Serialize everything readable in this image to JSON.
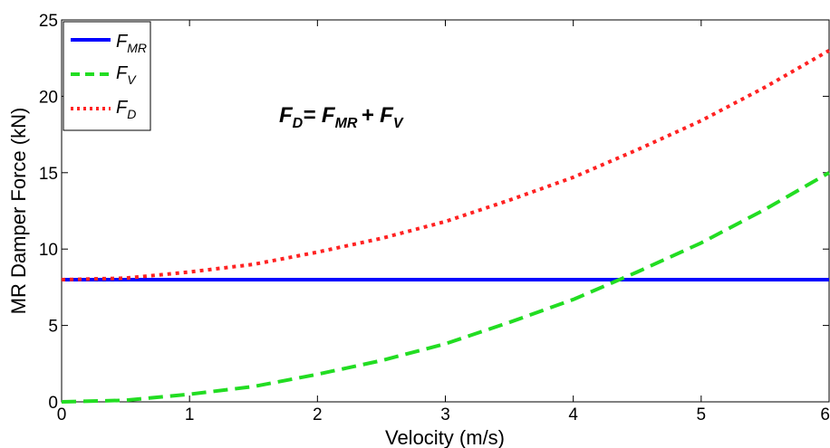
{
  "chart_data": {
    "type": "line",
    "xlabel": "Velocity (m/s)",
    "ylabel": "MR Damper Force (kN)",
    "xlim": [
      0,
      6
    ],
    "ylim": [
      0,
      25
    ],
    "x_ticks": [
      "0",
      "1",
      "2",
      "3",
      "4",
      "5",
      "6"
    ],
    "y_ticks": [
      "0",
      "5",
      "10",
      "15",
      "20",
      "25"
    ],
    "grid": false,
    "legend_position": "top-left",
    "annotation": {
      "base": [
        "F",
        "= F",
        "+ F"
      ],
      "subs": [
        "D",
        "MR",
        "V"
      ]
    },
    "x": [
      0,
      0.5,
      1,
      1.5,
      2,
      2.5,
      3,
      3.5,
      4,
      4.5,
      5,
      5.5,
      6
    ],
    "series": [
      {
        "name_base": "F",
        "name_sub": "MR",
        "color": "#0000ff",
        "style": "solid",
        "values": [
          8,
          8,
          8,
          8,
          8,
          8,
          8,
          8,
          8,
          8,
          8,
          8,
          8
        ]
      },
      {
        "name_base": "F",
        "name_sub": "V",
        "color": "#22dd22",
        "style": "dashed",
        "values": [
          0,
          0.1,
          0.5,
          1.0,
          1.8,
          2.7,
          3.8,
          5.2,
          6.7,
          8.5,
          10.4,
          12.6,
          15.0
        ]
      },
      {
        "name_base": "F",
        "name_sub": "D",
        "color": "#ff2222",
        "style": "dotted",
        "values": [
          8,
          8.1,
          8.5,
          9.0,
          9.8,
          10.7,
          11.8,
          13.2,
          14.7,
          16.5,
          18.4,
          20.6,
          23.0
        ]
      }
    ]
  }
}
